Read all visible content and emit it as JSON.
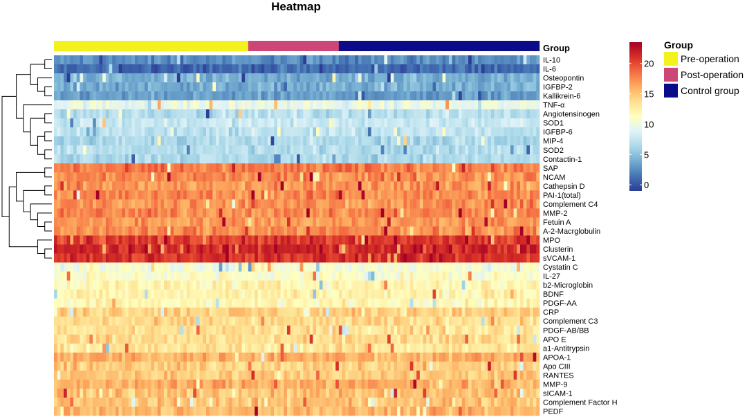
{
  "chart_data": {
    "type": "heatmap",
    "title": "Heatmap",
    "annotation_label": "Group",
    "groups": [
      {
        "name": "Pre-operation",
        "color": "#f3f21d",
        "count": 60
      },
      {
        "name": "Post-operation",
        "color": "#cc4778",
        "count": 28
      },
      {
        "name": "Control group",
        "color": "#0b0b8a",
        "count": 62
      }
    ],
    "rows": [
      {
        "label": "IL-10",
        "level": 2.5
      },
      {
        "label": "IL-6",
        "level": 1.0
      },
      {
        "label": "Osteopontin",
        "level": 4.0
      },
      {
        "label": "IGFBP-2",
        "level": 4.0
      },
      {
        "label": "Kallikrein-6",
        "level": 3.2
      },
      {
        "label": "TNF-α",
        "level": 9.5
      },
      {
        "label": "Angiotensinogen",
        "level": 7.0
      },
      {
        "label": "SOD1",
        "level": 7.8
      },
      {
        "label": "IGFBP-6",
        "level": 7.2
      },
      {
        "label": "MIP-4",
        "level": 6.5
      },
      {
        "label": "SOD2",
        "level": 6.8
      },
      {
        "label": "Contactin-1",
        "level": 6.6
      },
      {
        "label": "SAP",
        "level": 18.0
      },
      {
        "label": "NCAM",
        "level": 17.5
      },
      {
        "label": "Cathepsin D",
        "level": 17.0
      },
      {
        "label": "PAI-1(total)",
        "level": 17.5
      },
      {
        "label": "Complement C4",
        "level": 17.2
      },
      {
        "label": "MMP-2",
        "level": 17.6
      },
      {
        "label": "Fetuin A",
        "level": 17.0
      },
      {
        "label": "A-2-Macrglobulin",
        "level": 17.4
      },
      {
        "label": "MPO",
        "level": 20.5
      },
      {
        "label": "Clusterin",
        "level": 21.5
      },
      {
        "label": "sVCAM-1",
        "level": 21.0
      },
      {
        "label": "Cystatin C",
        "level": 10.5
      },
      {
        "label": "IL-27",
        "level": 11.0
      },
      {
        "label": "b2-Microglobin",
        "level": 12.0
      },
      {
        "label": "BDNF",
        "level": 12.2
      },
      {
        "label": "PDGF-AA",
        "level": 11.8
      },
      {
        "label": "CRP",
        "level": 14.5
      },
      {
        "label": "Complement C3",
        "level": 13.8
      },
      {
        "label": "PDGF-AB/BB",
        "level": 13.5
      },
      {
        "label": "APO E",
        "level": 13.8
      },
      {
        "label": "a1-Antitrypsin",
        "level": 13.2
      },
      {
        "label": "APOA-1",
        "level": 16.0
      },
      {
        "label": "Apo CIII",
        "level": 14.5
      },
      {
        "label": "RANTES",
        "level": 14.8
      },
      {
        "label": "MMP-9",
        "level": 16.0
      },
      {
        "label": "sICAM-1",
        "level": 15.0
      },
      {
        "label": "Complement Factor H",
        "level": 15.0
      },
      {
        "label": "PEDF",
        "level": 15.5
      }
    ],
    "colorbar": {
      "min": -1,
      "max": 23.5,
      "ticks": [
        0,
        5,
        10,
        15,
        20
      ],
      "colors": [
        "#2c3c97",
        "#4575b4",
        "#74add1",
        "#abd9e9",
        "#e0f3f8",
        "#ffffbf",
        "#fee090",
        "#fdae61",
        "#f46d43",
        "#d73027",
        "#a50026"
      ]
    },
    "legend": {
      "title": "Group",
      "placement": "right",
      "items": [
        "Pre-operation",
        "Post-operation",
        "Control group"
      ]
    }
  }
}
